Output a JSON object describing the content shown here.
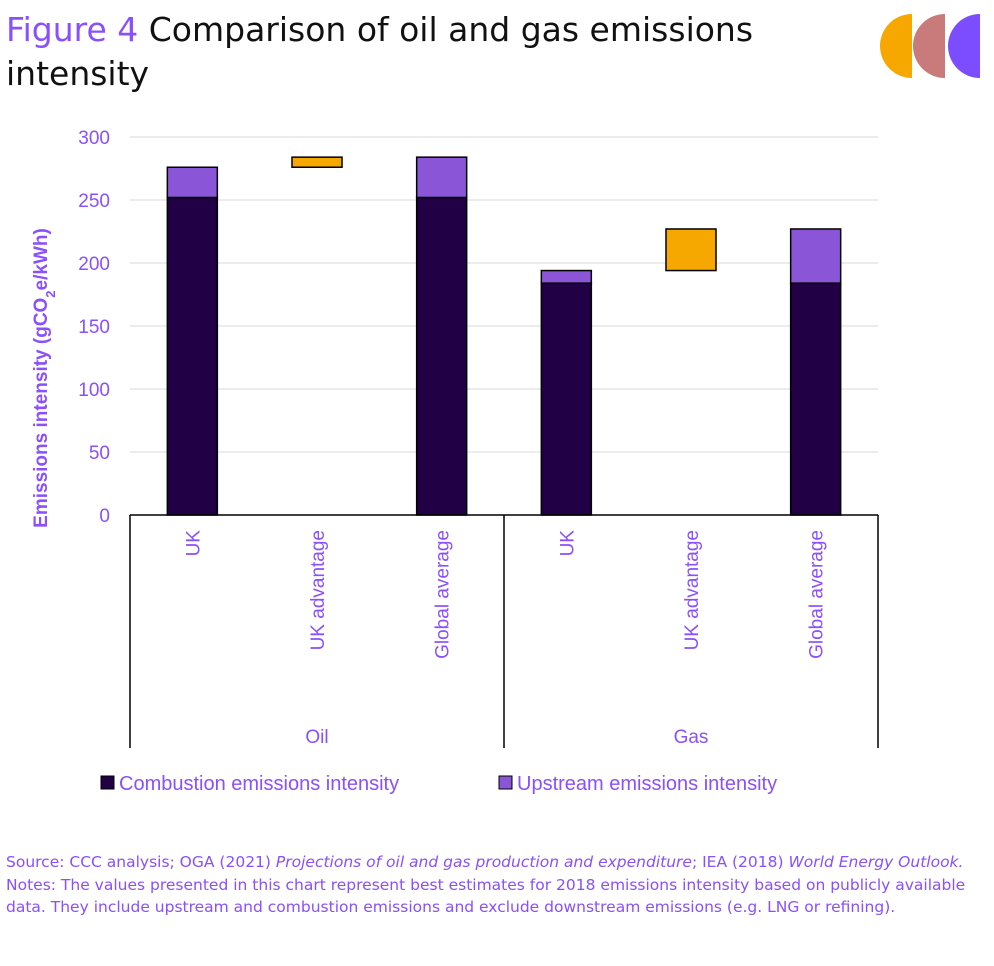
{
  "title": {
    "figure_label": "Figure 4",
    "text": "Comparison of oil and gas emissions intensity"
  },
  "logo": {
    "colors": [
      "#f7a800",
      "#c97a7a",
      "#7b4dff"
    ]
  },
  "colors": {
    "combustion": "#210046",
    "upstream": "#8a55d6",
    "advantage": "#f7a800",
    "axis_text": "#8a4fff",
    "grid": "#d9d9d9"
  },
  "chart_data": {
    "type": "bar",
    "stacked": true,
    "ylabel": "Emissions intensity (gCO2e/kWh)",
    "ylim": [
      0,
      300
    ],
    "yticks": [
      0,
      50,
      100,
      150,
      200,
      250,
      300
    ],
    "groups": [
      {
        "label": "Oil",
        "categories": [
          "UK",
          "UK advantage",
          "Global average"
        ]
      },
      {
        "label": "Gas",
        "categories": [
          "UK",
          "UK advantage",
          "Global average"
        ]
      }
    ],
    "categories": [
      "UK",
      "UK advantage",
      "Global average",
      "UK",
      "UK advantage",
      "Global average"
    ],
    "series": [
      {
        "name": "Combustion emissions intensity",
        "key": "combustion",
        "values": [
          252,
          0,
          252,
          184,
          0,
          184
        ]
      },
      {
        "name": "Upstream emissions intensity",
        "key": "upstream",
        "values": [
          24,
          0,
          32,
          10,
          0,
          43
        ]
      }
    ],
    "advantage_floating": [
      {
        "index": 1,
        "from": 276,
        "to": 284
      },
      {
        "index": 4,
        "from": 194,
        "to": 227
      }
    ],
    "legend": [
      "Combustion emissions intensity",
      "Upstream emissions intensity"
    ]
  },
  "source": {
    "prefix": "Source: CCC analysis; OGA (2021) ",
    "pub1": "Projections of oil and gas production and expenditure",
    "mid": "; IEA (2018) ",
    "pub2": "World Energy Outlook.",
    "notes": "Notes: The values presented in this chart represent best estimates for 2018 emissions intensity based on publicly available data. They include upstream and combustion emissions and exclude downstream emissions (e.g. LNG or refining)."
  }
}
